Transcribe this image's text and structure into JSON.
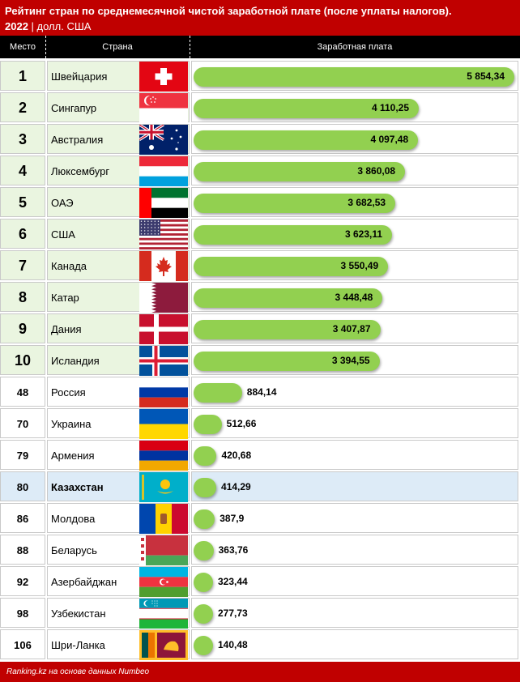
{
  "header": {
    "title": "Рейтинг стран по среднемесячной чистой заработной плате (после уплаты налогов).",
    "year": "2022",
    "separator": " | ",
    "unit": "долл. США"
  },
  "columns": {
    "rank": "Место",
    "country": "Страна",
    "salary": "Заработная плата"
  },
  "footer": {
    "source": "Ranking.kz на основе данных Numbeo"
  },
  "colors": {
    "header_bg": "#c00000",
    "bar": "#92d050",
    "highlight": "#ddebf7",
    "top_row": "#eaf5e0"
  },
  "chart_data": {
    "type": "bar",
    "title": "Рейтинг стран по среднемесячной чистой заработной плате (после уплаты налогов).",
    "unit": "долл. США",
    "rows": [
      {
        "rank": "1",
        "country": "Швейцария",
        "flag": "switzerland-flag",
        "value": 5854.34,
        "label": "5 854,34"
      },
      {
        "rank": "2",
        "country": "Сингапур",
        "flag": "singapore-flag",
        "value": 4110.25,
        "label": "4 110,25"
      },
      {
        "rank": "3",
        "country": "Австралия",
        "flag": "australia-flag",
        "value": 4097.48,
        "label": "4 097,48"
      },
      {
        "rank": "4",
        "country": "Люксембург",
        "flag": "luxembourg-flag",
        "value": 3860.08,
        "label": "3 860,08"
      },
      {
        "rank": "5",
        "country": "ОАЭ",
        "flag": "uae-flag",
        "value": 3682.53,
        "label": "3 682,53"
      },
      {
        "rank": "6",
        "country": "США",
        "flag": "usa-flag",
        "value": 3623.11,
        "label": "3 623,11"
      },
      {
        "rank": "7",
        "country": "Канада",
        "flag": "canada-flag",
        "value": 3550.49,
        "label": "3 550,49"
      },
      {
        "rank": "8",
        "country": "Катар",
        "flag": "qatar-flag",
        "value": 3448.48,
        "label": "3 448,48"
      },
      {
        "rank": "9",
        "country": "Дания",
        "flag": "denmark-flag",
        "value": 3407.87,
        "label": "3 407,87"
      },
      {
        "rank": "10",
        "country": "Исландия",
        "flag": "iceland-flag",
        "value": 3394.55,
        "label": "3 394,55"
      },
      {
        "rank": "48",
        "country": "Россия",
        "flag": "russia-flag",
        "value": 884.14,
        "label": "884,14"
      },
      {
        "rank": "70",
        "country": "Украина",
        "flag": "ukraine-flag",
        "value": 512.66,
        "label": "512,66"
      },
      {
        "rank": "79",
        "country": "Армения",
        "flag": "armenia-flag",
        "value": 420.68,
        "label": "420,68"
      },
      {
        "rank": "80",
        "country": "Казахстан",
        "flag": "kazakhstan-flag",
        "value": 414.29,
        "label": "414,29",
        "highlight": true
      },
      {
        "rank": "86",
        "country": "Молдова",
        "flag": "moldova-flag",
        "value": 387.9,
        "label": "387,9"
      },
      {
        "rank": "88",
        "country": "Беларусь",
        "flag": "belarus-flag",
        "value": 363.76,
        "label": "363,76"
      },
      {
        "rank": "92",
        "country": "Азербайджан",
        "flag": "azerbaijan-flag",
        "value": 323.44,
        "label": "323,44"
      },
      {
        "rank": "98",
        "country": "Узбекистан",
        "flag": "uzbekistan-flag",
        "value": 277.73,
        "label": "277,73"
      },
      {
        "rank": "106",
        "country": "Шри-Ланка",
        "flag": "sri-lanka-flag",
        "value": 140.48,
        "label": "140,48"
      }
    ]
  }
}
